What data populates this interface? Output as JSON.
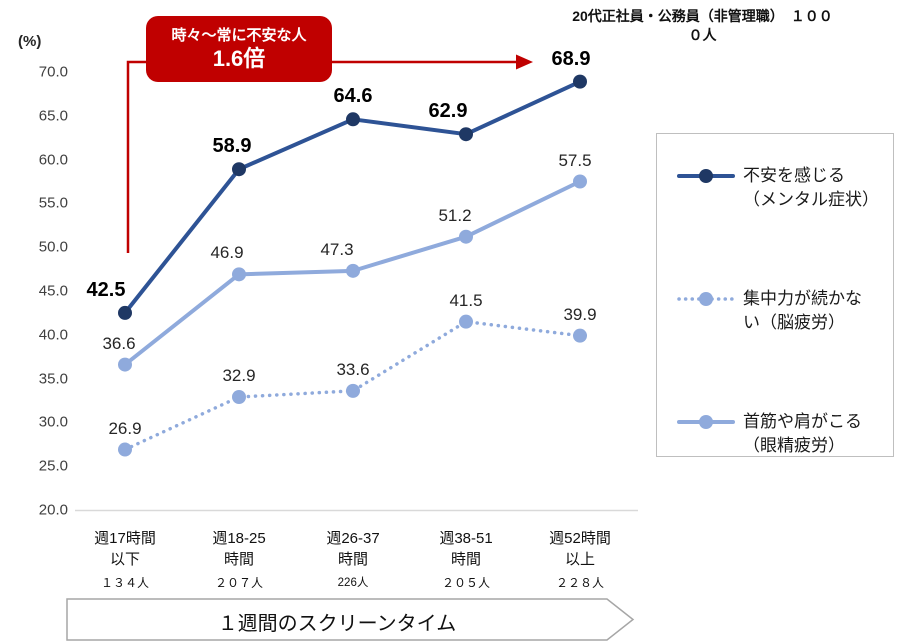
{
  "header": {
    "line1": "20代正社員・公務員（非管理職）　１００",
    "line2": "０人"
  },
  "y_axis": {
    "unit_label": "(%)",
    "ticks": [
      "70.0",
      "65.0",
      "60.0",
      "55.0",
      "50.0",
      "45.0",
      "40.0",
      "35.0",
      "30.0",
      "25.0",
      "20.0"
    ]
  },
  "annotation": {
    "line1": "時々〜常に不安な人",
    "line2": "1.6倍",
    "color": "#c00000"
  },
  "banner": {
    "label": "１週間のスクリーンタイム"
  },
  "legend": {
    "position": "right",
    "items": [
      {
        "lines": [
          "不安を感じる",
          "（メンタル症状）"
        ],
        "style": "solid",
        "color": "#2e5395",
        "marker_color": "#1f3864"
      },
      {
        "lines": [
          "集中力が続かな",
          "い（脳疲労）"
        ],
        "style": "dotted",
        "color": "#8faadc",
        "marker_color": "#8faadc"
      },
      {
        "lines": [
          "首筋や肩がこる",
          "（眼精疲労）"
        ],
        "style": "solid",
        "color": "#8faadc",
        "marker_color": "#8faadc"
      }
    ]
  },
  "chart_data": {
    "type": "line",
    "title": "20代正社員・公務員（非管理職）１０００人",
    "xlabel": "１週間のスクリーンタイム",
    "ylabel": "(%)",
    "ylim": [
      20.0,
      70.0
    ],
    "y_step": 5.0,
    "grid": false,
    "legend_position": "right",
    "categories": [
      {
        "lines": [
          "週17時間",
          "以下"
        ],
        "count": "１３４人",
        "count_small": false
      },
      {
        "lines": [
          "週18-25",
          "時間"
        ],
        "count": "２０７人",
        "count_small": false
      },
      {
        "lines": [
          "週26-37",
          "時間"
        ],
        "count": "226人",
        "count_small": true
      },
      {
        "lines": [
          "週38-51",
          "時間"
        ],
        "count": "２０５人",
        "count_small": false
      },
      {
        "lines": [
          "週52時間",
          "以上"
        ],
        "count": "２２８人",
        "count_small": false
      }
    ],
    "series": [
      {
        "name": "不安を感じる（メンタル症状）",
        "values": [
          42.5,
          58.9,
          64.6,
          62.9,
          68.9
        ],
        "style": "solid",
        "color": "#2e5395",
        "marker_color": "#1f3864",
        "label_bold": true
      },
      {
        "name": "集中力が続かない（脳疲労）",
        "values": [
          26.9,
          32.9,
          33.6,
          41.5,
          39.9
        ],
        "style": "dotted",
        "color": "#8faadc",
        "marker_color": "#8faadc",
        "label_bold": false
      },
      {
        "name": "首筋や肩がこる（眼精疲労）",
        "values": [
          36.6,
          46.9,
          47.3,
          51.2,
          57.5
        ],
        "style": "solid",
        "color": "#8faadc",
        "marker_color": "#8faadc",
        "label_bold": false
      }
    ],
    "annotation": {
      "text": "時々〜常に不安な人 1.6倍",
      "applies_to": "不安を感じる（メンタル症状）"
    }
  }
}
